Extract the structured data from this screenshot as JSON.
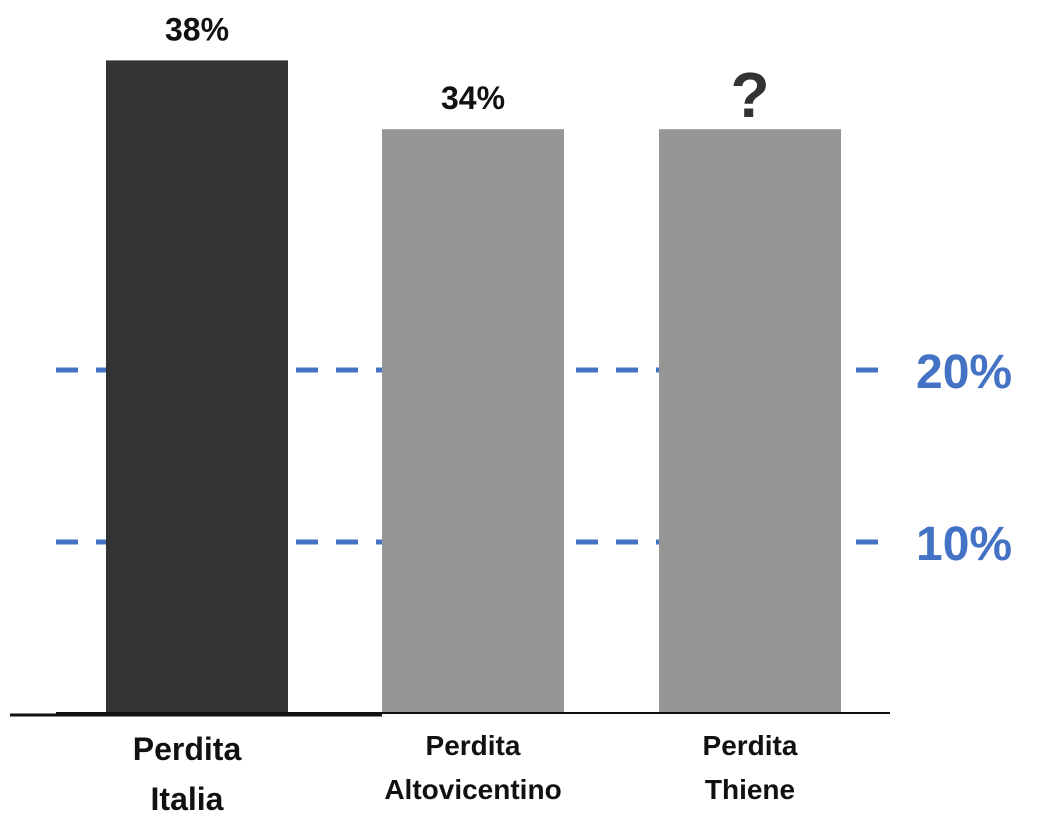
{
  "chart_data": {
    "type": "bar",
    "categories": [
      [
        "Perdita",
        "Italia"
      ],
      [
        "Perdita",
        "Altovicentino"
      ],
      [
        "Perdita",
        "Thiene"
      ]
    ],
    "values": [
      38,
      34,
      34
    ],
    "value_labels": [
      "38%",
      "34%",
      "?"
    ],
    "bar_colors": [
      "#333333",
      "#969696",
      "#969696"
    ],
    "reference_lines": [
      {
        "value": 20,
        "label": "20%"
      },
      {
        "value": 10,
        "label": "10%"
      }
    ],
    "reference_line_color": "#4472C4",
    "ylim": [
      0,
      40
    ],
    "grid": false,
    "legend": "none",
    "title": "",
    "xlabel": "",
    "ylabel": ""
  }
}
